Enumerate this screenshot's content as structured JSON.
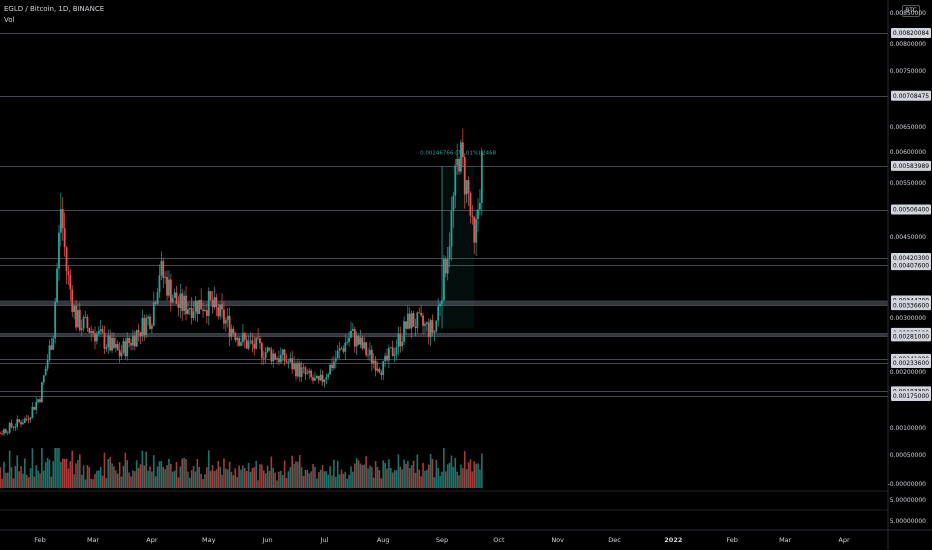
{
  "header": {
    "symbol_line": "EGLD / Bitcoin, 1D, BINANCE",
    "volume_label": "Vol"
  },
  "currency_button": "BTC",
  "colors": {
    "background": "#000000",
    "up": "#26a69a",
    "down": "#ef5350",
    "level_line": "#5d606b",
    "text": "#d1d4dc"
  },
  "chart_data": {
    "type": "candlestick",
    "instrument": "EGLD / Bitcoin",
    "timeframe": "1D",
    "exchange": "BINANCE",
    "x_tick_labels": [
      "Feb",
      "Mar",
      "Apr",
      "May",
      "Jun",
      "Jul",
      "Aug",
      "Sep",
      "Oct",
      "Nov",
      "Dec",
      "2022",
      "Feb",
      "Mar",
      "Apr"
    ],
    "price_axis_ticks": [
      "0.00850000",
      "0.00800000",
      "0.00750000",
      "0.00650000",
      "0.00600000",
      "0.00550000",
      "0.00450000",
      "0.00300000",
      "0.00200000",
      "0.00100000",
      "0.00050000"
    ],
    "level_labels": [
      "0.00820084",
      "0.00708475",
      "0.00583989",
      "0.00506400",
      "0.00420300",
      "0.00407600",
      "0.00344700",
      "0.00336600",
      "0.00287100",
      "0.00281000",
      "0.00241000",
      "0.00233600",
      "0.00183300",
      "0.00175000"
    ],
    "volume_axis_ticks": [
      "-0.00000000",
      "5.00000000",
      "5.00000000"
    ],
    "measure_label": "0.00246766 (73.01%) 2468",
    "series_ohlc_approx": [
      {
        "date": "2021-01-05",
        "close": 0.001
      },
      {
        "date": "2021-01-25",
        "close": 0.00135
      },
      {
        "date": "2021-02-01",
        "close": 0.00175
      },
      {
        "date": "2021-02-08",
        "close": 0.0029
      },
      {
        "date": "2021-02-12",
        "close": 0.0051
      },
      {
        "date": "2021-02-15",
        "close": 0.004
      },
      {
        "date": "2021-02-20",
        "close": 0.0031
      },
      {
        "date": "2021-03-01",
        "close": 0.0029
      },
      {
        "date": "2021-03-15",
        "close": 0.0025
      },
      {
        "date": "2021-04-01",
        "close": 0.0032
      },
      {
        "date": "2021-04-05",
        "close": 0.004
      },
      {
        "date": "2021-04-15",
        "close": 0.00335
      },
      {
        "date": "2021-05-01",
        "close": 0.0034
      },
      {
        "date": "2021-05-20",
        "close": 0.0027
      },
      {
        "date": "2021-06-10",
        "close": 0.0024
      },
      {
        "date": "2021-06-28",
        "close": 0.00195
      },
      {
        "date": "2021-07-15",
        "close": 0.00285
      },
      {
        "date": "2021-07-25",
        "close": 0.00245
      },
      {
        "date": "2021-08-01",
        "close": 0.00225
      },
      {
        "date": "2021-08-15",
        "close": 0.0031
      },
      {
        "date": "2021-08-28",
        "close": 0.0029
      },
      {
        "date": "2021-09-01",
        "close": 0.0037
      },
      {
        "date": "2021-09-05",
        "close": 0.0046
      },
      {
        "date": "2021-09-10",
        "close": 0.0061
      },
      {
        "date": "2021-09-15",
        "close": 0.0053
      },
      {
        "date": "2021-09-18",
        "close": 0.0043
      },
      {
        "date": "2021-09-22",
        "close": 0.0059
      }
    ]
  }
}
